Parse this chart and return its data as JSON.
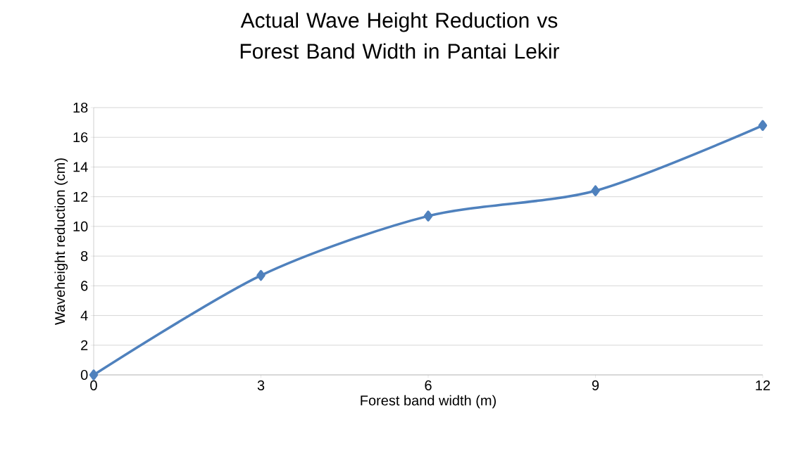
{
  "chart_data": {
    "type": "line",
    "title": "Actual Wave Height Reduction vs Forest Band Width in Pantai Lekir",
    "xlabel": "Forest band width (m)",
    "ylabel": "Waveheight reduction (cm)",
    "x": [
      0,
      3,
      6,
      9,
      12
    ],
    "series": [
      {
        "color": "#4f81bd",
        "values": [
          0,
          6.7,
          10.7,
          12.4,
          16.8
        ]
      }
    ],
    "xlim": [
      0,
      12
    ],
    "xticks": [
      0,
      3,
      6,
      9,
      12
    ],
    "ylim": [
      0,
      18
    ],
    "yticks": [
      0,
      2,
      4,
      6,
      8,
      10,
      12,
      14,
      16,
      18
    ],
    "grid": "y",
    "marker": "diamond",
    "line_style": "solid"
  }
}
